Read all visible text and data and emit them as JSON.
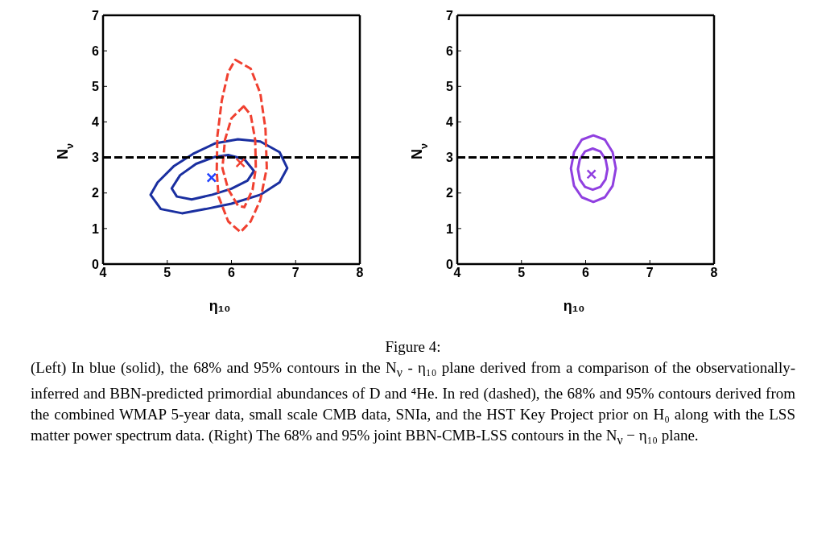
{
  "chart_data": [
    {
      "type": "scatter",
      "xlabel": "η₁₀",
      "ylabel": "N$_{ν}$",
      "xlim": [
        4,
        8
      ],
      "ylim": [
        0,
        7
      ],
      "xticks": [
        4,
        5,
        6,
        7,
        8
      ],
      "yticks": [
        0,
        1,
        2,
        3,
        4,
        5,
        6,
        7
      ],
      "grid": false,
      "legend": false,
      "ref_lines": [
        {
          "axis": "y",
          "value": 3,
          "color": "#000000",
          "line_style": "dashed"
        }
      ],
      "series": [
        {
          "color": "#2040ff",
          "marker": "cross",
          "x": [
            5.69
          ],
          "values": [
            2.43
          ]
        },
        {
          "color": "#f04030",
          "marker": "cross",
          "x": [
            6.14
          ],
          "values": [
            2.85
          ]
        }
      ],
      "annotations": [
        "Figure 4:",
        "(Left) In blue (solid), the 68% and 95% contours in the N$_{ν}$ - η₁₀ plane derived from a comparison of the observationally-inferred and BBN-predicted primordial abundances of D and ⁴He. In red (dashed), the 68% and 95% contours derived from the combined WMAP 5-year data, small scale CMB data, SNIa, and the HST Key Project prior on H₀ along with the LSS matter power spectrum data. (Right) The 68% and 95% joint BBN-CMB-LSS contours in the N$_{ν}$ − η₁₀ plane."
      ]
    },
    {
      "type": "scatter",
      "xlabel": "η₁₀",
      "ylabel": "N$_{ν}$",
      "xlim": [
        4,
        8
      ],
      "ylim": [
        0,
        7
      ],
      "xticks": [
        4,
        5,
        6,
        7,
        8
      ],
      "yticks": [
        0,
        1,
        2,
        3,
        4,
        5,
        6,
        7
      ],
      "grid": false,
      "legend": false,
      "ref_lines": [
        {
          "axis": "y",
          "value": 3,
          "color": "#000000",
          "line_style": "dashed"
        }
      ],
      "series": [
        {
          "color": "#9040e0",
          "marker": "cross",
          "x": [
            6.09
          ],
          "values": [
            2.53
          ]
        }
      ]
    }
  ]
}
